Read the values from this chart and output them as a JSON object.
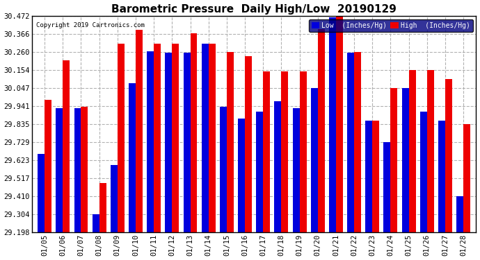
{
  "title": "Barometric Pressure  Daily High/Low  20190129",
  "copyright": "Copyright 2019 Cartronics.com",
  "dates": [
    "01/05",
    "01/06",
    "01/07",
    "01/08",
    "01/09",
    "01/10",
    "01/11",
    "01/12",
    "01/13",
    "01/14",
    "01/15",
    "01/16",
    "01/17",
    "01/18",
    "01/19",
    "01/20",
    "01/21",
    "01/22",
    "01/23",
    "01/24",
    "01/25",
    "01/26",
    "01/27",
    "01/28"
  ],
  "low": [
    29.66,
    29.93,
    29.93,
    29.304,
    29.595,
    30.075,
    30.265,
    30.255,
    30.255,
    30.31,
    29.94,
    29.87,
    29.91,
    29.97,
    29.93,
    30.05,
    30.465,
    30.255,
    29.855,
    29.73,
    30.05,
    29.91,
    29.855,
    29.41
  ],
  "high": [
    29.98,
    30.21,
    29.94,
    29.49,
    30.31,
    30.39,
    30.31,
    30.31,
    30.37,
    30.31,
    30.26,
    30.235,
    30.145,
    30.145,
    30.145,
    30.395,
    30.472,
    30.26,
    29.855,
    30.05,
    30.154,
    30.154,
    30.1,
    29.835
  ],
  "ylim_min": 29.198,
  "ylim_max": 30.472,
  "yticks": [
    29.198,
    29.304,
    29.41,
    29.517,
    29.623,
    29.729,
    29.835,
    29.941,
    30.047,
    30.154,
    30.26,
    30.366,
    30.472
  ],
  "low_color": "#0000dd",
  "high_color": "#ee0000",
  "legend_low_label": "Low  (Inches/Hg)",
  "legend_high_label": "High  (Inches/Hg)",
  "bg_color": "#ffffff",
  "plot_bg_color": "#ffffff",
  "grid_color": "#aaaaaa",
  "title_fontsize": 11,
  "bar_width": 0.38
}
